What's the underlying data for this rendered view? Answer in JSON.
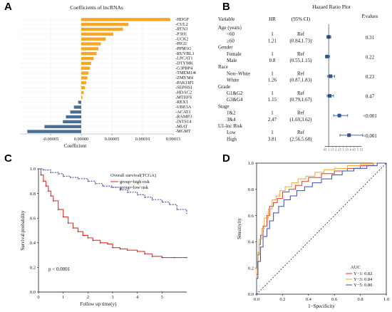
{
  "panel_labels": {
    "a": "A",
    "b": "B",
    "c": "C",
    "d": "D"
  },
  "chart_data": [
    {
      "type": "bar",
      "panel": "A",
      "title": "Coefficients of lncRNAs",
      "xlabel": "Coefficient",
      "xlim": [
        -0.0001,
        0.00015
      ],
      "xticks": [
        "-0.00005",
        "0.00000",
        "0.00005",
        "0.00010",
        "0.00015"
      ],
      "xtick_values": [
        -5e-05,
        0,
        5e-05,
        0.0001,
        0.00015
      ],
      "orientation": "horizontal",
      "colors": {
        "positive": "#F5A623",
        "negative": "#4A6D96"
      },
      "categories": [
        "HDGF",
        "CUL2",
        "RTN3",
        "P3H1",
        "UCK2",
        "PIGU",
        "PPM1G",
        "RUVBL1",
        "LPCAT1",
        "DTYMK",
        "G3PBP4",
        "TMEM14C",
        "ZMYM4",
        "PAK1IP1",
        "SEPHS1",
        "HDAC2",
        "MTHFS",
        "REX1",
        "UBE3A",
        "ACAT1",
        "RAMP3",
        "INTS14",
        "MIAT",
        "MGMT"
      ],
      "labels": [
        "HDGF",
        "CUL2",
        "RTN3",
        "P3H1",
        "UCK2",
        "PIGU",
        "PPM1G",
        "RUVBL1",
        "LPCAT1",
        "DTYMK",
        "G3PBP4",
        "TMEM14C",
        "ZMYM4",
        "PAK1IP1",
        "SEPHS1",
        "HDAC2",
        "MTHFS",
        "REX1",
        "UBE3A",
        "ACAT1",
        "RAMP3",
        "INTS14",
        "MIAT",
        "MGMT"
      ],
      "values": [
        0.000145,
        7.7e-05,
        6.8e-05,
        5.2e-05,
        4e-05,
        3.2e-05,
        2.8e-05,
        2.5e-05,
        2e-05,
        1.6e-05,
        1.4e-05,
        1.2e-05,
        1e-05,
        8e-06,
        6e-06,
        4e-06,
        2e-06,
        -5e-06,
        -1.2e-05,
        -1.8e-05,
        -2.5e-05,
        -3e-05,
        -6e-05,
        -8.8e-05
      ]
    },
    {
      "type": "table",
      "panel": "B",
      "title": "Hazard Ratio Plot",
      "headers": {
        "variable": "Variable",
        "hr": "HR",
        "ci": "(95% CI)",
        "p": "P.values"
      },
      "rows": [
        {
          "label": "Age (years)",
          "kind": "group"
        },
        {
          "label": "<60",
          "kind": "level",
          "hr": "1",
          "ci": "Ref",
          "est": 1.0,
          "lo": 0.75,
          "hi": 1.3,
          "p": "0.31"
        },
        {
          "label": "≥60",
          "kind": "level",
          "hr": "1.21",
          "ci": "(0.84,1.73)",
          "est": 1.21,
          "lo": 0.84,
          "hi": 1.73
        },
        {
          "label": "Gender",
          "kind": "group"
        },
        {
          "label": "Female",
          "kind": "level",
          "hr": "1",
          "ci": "Ref",
          "est": 0.8,
          "lo": 0.55,
          "hi": 1.15,
          "p": "0.22"
        },
        {
          "label": "Male",
          "kind": "level",
          "hr": "0.8",
          "ci": "(0.55,1.15)",
          "est": 0.8,
          "lo": 0.55,
          "hi": 1.15
        },
        {
          "label": "Race",
          "kind": "group"
        },
        {
          "label": "Non−White",
          "kind": "level",
          "hr": "1",
          "ci": "Ref",
          "est": 1.26,
          "lo": 0.87,
          "hi": 1.83,
          "p": "0.23"
        },
        {
          "label": "White",
          "kind": "level",
          "hr": "1.26",
          "ci": "(0.87,1.83)",
          "est": 1.26,
          "lo": 0.87,
          "hi": 1.83
        },
        {
          "label": "Grade",
          "kind": "group"
        },
        {
          "label": "G1&G2",
          "kind": "level",
          "hr": "1",
          "ci": "Ref",
          "est": 1.15,
          "lo": 0.79,
          "hi": 1.67,
          "p": "0.47"
        },
        {
          "label": "G3&G4",
          "kind": "level",
          "hr": "1.15",
          "ci": "(0.79,1.67)",
          "est": 1.15,
          "lo": 0.79,
          "hi": 1.67
        },
        {
          "label": "Stage",
          "kind": "group"
        },
        {
          "label": "1&2",
          "kind": "level",
          "hr": "1",
          "ci": "Ref",
          "est": 2.47,
          "lo": 1.69,
          "hi": 3.62,
          "p": "<0.001"
        },
        {
          "label": "3&4",
          "kind": "level",
          "hr": "2.47",
          "ci": "(1.69,3.62)",
          "est": 2.47,
          "lo": 1.69,
          "hi": 3.62
        },
        {
          "label": "U1-lnc Risk",
          "kind": "group"
        },
        {
          "label": "Low",
          "kind": "level",
          "hr": "1",
          "ci": "Ref",
          "est": 3.81,
          "lo": 2.56,
          "hi": 5.68,
          "p": "<0.001"
        },
        {
          "label": "High",
          "kind": "level",
          "hr": "3.81",
          "ci": "(2.56,5.68)",
          "est": 3.81,
          "lo": 2.56,
          "hi": 5.68
        }
      ],
      "xticks": [
        "0.5",
        "1",
        "1.5",
        "2",
        "2.5",
        "3",
        "3.5",
        "4",
        "4.5",
        "5",
        "5.5"
      ],
      "xtick_values": [
        0.5,
        1,
        1.5,
        2,
        2.5,
        3,
        3.5,
        4,
        4.5,
        5,
        5.5
      ],
      "xlim": [
        0.5,
        5.5
      ],
      "ref_line": 1,
      "color": "#2F5597"
    },
    {
      "type": "line",
      "panel": "C",
      "xlabel": "Follow up time(y)",
      "ylabel": "Survival probability",
      "xticks": [
        "0",
        "1",
        "2",
        "3",
        "4",
        "5"
      ],
      "xtick_values": [
        0,
        1,
        2,
        3,
        4,
        5
      ],
      "yticks": [
        "0.0",
        "0.2",
        "0.4",
        "0.6",
        "0.8",
        "1.0"
      ],
      "ytick_values": [
        0,
        0.2,
        0.4,
        0.6,
        0.8,
        1.0
      ],
      "xlim": [
        0,
        6
      ],
      "ylim": [
        0,
        1
      ],
      "legend_title": "Overall survival(TCGA)",
      "annotation": "p < 0.0001",
      "series": [
        {
          "name": "group=high risk",
          "color": "#E8312A",
          "x": [
            0,
            0.1,
            0.2,
            0.3,
            0.4,
            0.5,
            0.6,
            0.8,
            1.0,
            1.2,
            1.4,
            1.6,
            1.8,
            2.0,
            2.2,
            2.5,
            2.8,
            3.0,
            3.3,
            3.6,
            4.0,
            4.3,
            4.6,
            5.0,
            5.5,
            6.0
          ],
          "y": [
            1.0,
            0.95,
            0.9,
            0.86,
            0.82,
            0.78,
            0.74,
            0.67,
            0.61,
            0.56,
            0.52,
            0.49,
            0.46,
            0.44,
            0.42,
            0.4,
            0.39,
            0.36,
            0.35,
            0.34,
            0.33,
            0.31,
            0.29,
            0.28,
            0.28,
            0.28
          ]
        },
        {
          "name": "group=low risk",
          "color": "#3A4BB8",
          "x": [
            0,
            0.2,
            0.5,
            0.8,
            1.0,
            1.3,
            1.6,
            2.0,
            2.3,
            2.6,
            3.0,
            3.3,
            3.6,
            4.0,
            4.3,
            4.6,
            5.0,
            5.3,
            5.6,
            6.0
          ],
          "y": [
            1.0,
            0.99,
            0.97,
            0.96,
            0.94,
            0.93,
            0.92,
            0.9,
            0.88,
            0.86,
            0.85,
            0.83,
            0.81,
            0.79,
            0.77,
            0.75,
            0.73,
            0.71,
            0.67,
            0.64
          ]
        }
      ]
    },
    {
      "type": "line",
      "panel": "D",
      "xlabel": "1−Specificity",
      "ylabel": "Sensitivity",
      "xticks": [
        "0.0",
        "0.2",
        "0.4",
        "0.6",
        "0.8",
        "1.0"
      ],
      "yticks": [
        "0.0",
        "0.2",
        "0.4",
        "0.6",
        "0.8",
        "1.0"
      ],
      "tick_values": [
        0,
        0.2,
        0.4,
        0.6,
        0.8,
        1.0
      ],
      "xlim": [
        0,
        1
      ],
      "ylim": [
        0,
        1
      ],
      "legend_title": "AUC",
      "series": [
        {
          "name": "Y−1: 0.82",
          "color": "#E8312A",
          "x": [
            0,
            0.01,
            0.02,
            0.03,
            0.05,
            0.08,
            0.1,
            0.13,
            0.16,
            0.2,
            0.25,
            0.3,
            0.35,
            0.4,
            0.5,
            0.6,
            0.7,
            0.8,
            0.9,
            1.0
          ],
          "y": [
            0,
            0.15,
            0.3,
            0.38,
            0.45,
            0.52,
            0.6,
            0.67,
            0.7,
            0.73,
            0.78,
            0.8,
            0.83,
            0.86,
            0.89,
            0.92,
            0.94,
            0.96,
            0.98,
            1.0
          ]
        },
        {
          "name": "Y−3: 0.84",
          "color": "#F5A623",
          "x": [
            0,
            0.01,
            0.02,
            0.04,
            0.06,
            0.09,
            0.12,
            0.15,
            0.18,
            0.22,
            0.27,
            0.32,
            0.38,
            0.45,
            0.52,
            0.6,
            0.7,
            0.8,
            0.9,
            1.0
          ],
          "y": [
            0,
            0.2,
            0.32,
            0.42,
            0.5,
            0.58,
            0.65,
            0.72,
            0.75,
            0.79,
            0.82,
            0.85,
            0.88,
            0.9,
            0.93,
            0.95,
            0.96,
            0.98,
            0.99,
            1.0
          ]
        },
        {
          "name": "Y−5: 0.80",
          "color": "#3A4BB8",
          "x": [
            0,
            0.01,
            0.03,
            0.05,
            0.08,
            0.1,
            0.13,
            0.17,
            0.21,
            0.26,
            0.31,
            0.37,
            0.43,
            0.5,
            0.58,
            0.66,
            0.75,
            0.85,
            0.93,
            1.0
          ],
          "y": [
            0,
            0.12,
            0.25,
            0.36,
            0.44,
            0.5,
            0.56,
            0.62,
            0.67,
            0.72,
            0.75,
            0.79,
            0.82,
            0.85,
            0.88,
            0.91,
            0.94,
            0.96,
            0.98,
            1.0
          ]
        }
      ]
    }
  ]
}
